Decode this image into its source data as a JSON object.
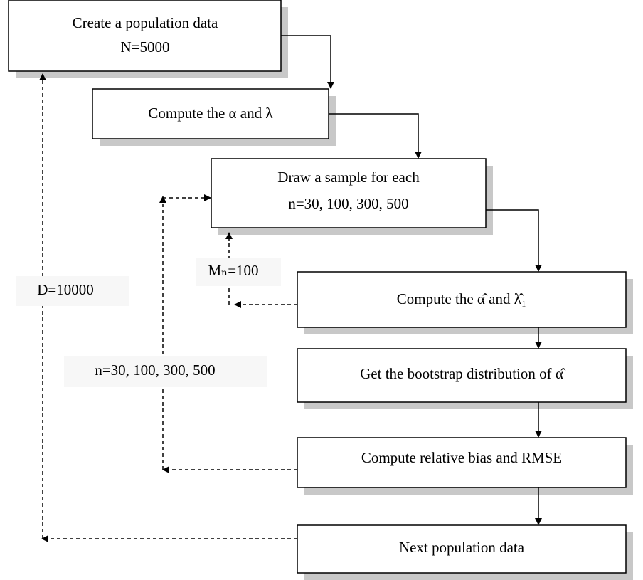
{
  "nodes": [
    {
      "lines": [
        "Create a population data",
        "N=5000"
      ]
    },
    {
      "lines": [
        "Compute the α and λ"
      ]
    },
    {
      "lines": [
        "Draw a sample for each",
        "n=30, 100, 300, 500"
      ]
    },
    {
      "lines": [
        "Compute the α̂ and λ̂₁"
      ]
    },
    {
      "lines": [
        "Get the bootstrap distribution of α̂"
      ]
    },
    {
      "lines": [
        "Compute relative bias and RMSE"
      ]
    },
    {
      "lines": [
        "Next population data"
      ]
    }
  ],
  "loops": [
    {
      "label": "Mₙ=100"
    },
    {
      "label": "n=30, 100, 300, 500"
    },
    {
      "label": "D=10000"
    }
  ]
}
